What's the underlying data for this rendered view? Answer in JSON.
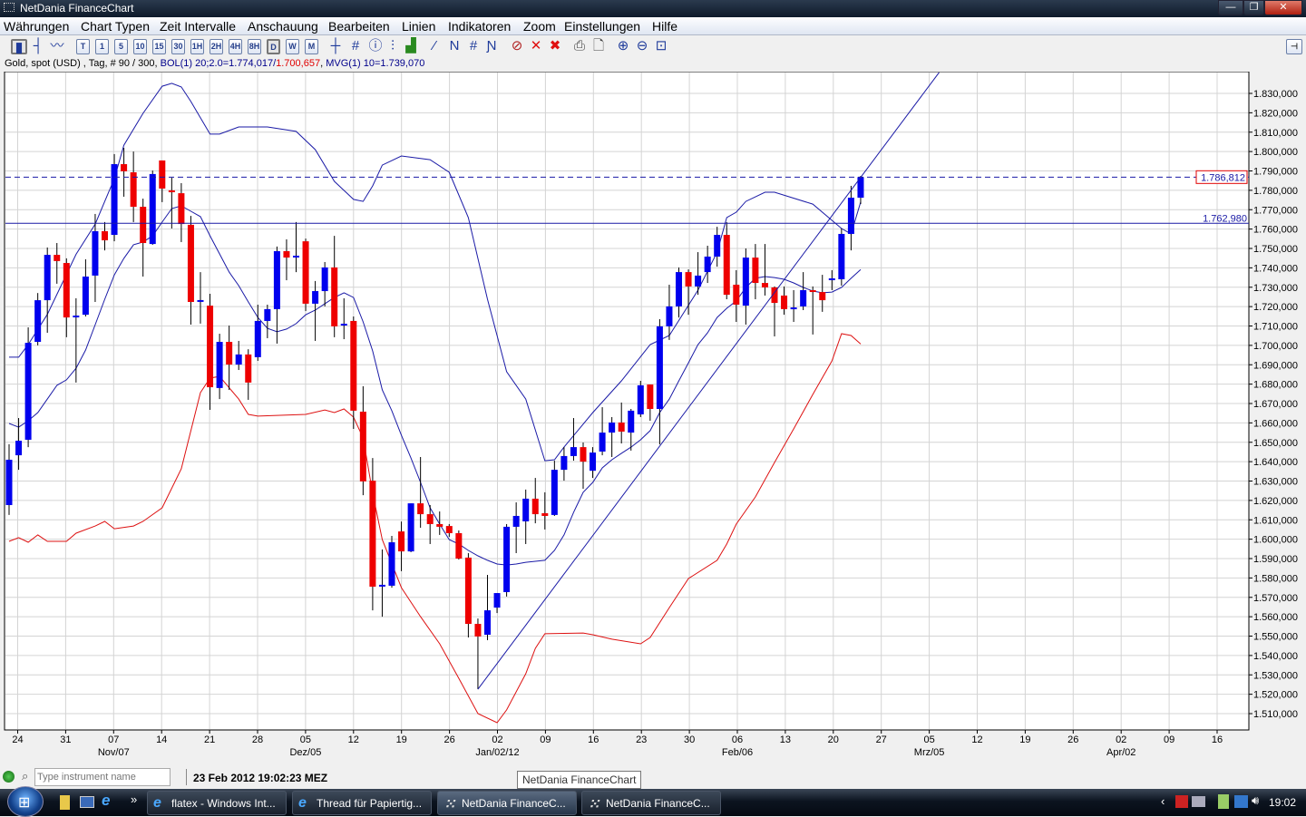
{
  "window": {
    "title": "NetDania FinanceChart",
    "minimize": "—",
    "restore": "❐",
    "close": "✕"
  },
  "menu": [
    "Währungen",
    "Chart Typen",
    "Zeit Intervalle",
    "Anschauung",
    "Bearbeiten",
    "Linien",
    "Indikatoren",
    "Zoom",
    "Einstellungen",
    "Hilfe"
  ],
  "toolbar": {
    "chart_types": [
      {
        "icon": "candlestick-chart-icon",
        "glyph": "▮"
      },
      {
        "icon": "bar-chart-icon",
        "glyph": "┤"
      },
      {
        "icon": "line-chart-icon",
        "glyph": "〰"
      }
    ],
    "intervals": [
      "T",
      "1",
      "5",
      "10",
      "15",
      "30",
      "1H",
      "2H",
      "4H",
      "8H",
      "D",
      "W",
      "M"
    ],
    "active_interval": "D",
    "tools": [
      {
        "icon": "crosshair-icon",
        "glyph": "┼"
      },
      {
        "icon": "grid-icon",
        "glyph": "#"
      },
      {
        "icon": "info-icon",
        "glyph": "ⓘ"
      },
      {
        "icon": "price-scale-icon",
        "glyph": "⫶"
      },
      {
        "icon": "volume-bars-icon",
        "glyph": "▟"
      },
      {
        "icon": "trendline-icon",
        "glyph": "⁄"
      },
      {
        "icon": "channel-line-icon",
        "glyph": "Ν"
      },
      {
        "icon": "parallel-lines-icon",
        "glyph": "#"
      },
      {
        "icon": "fibonacci-lines-icon",
        "glyph": "Ɲ"
      },
      {
        "icon": "delete-line-icon",
        "glyph": "⊘"
      },
      {
        "icon": "delete-icon",
        "glyph": "✕"
      },
      {
        "icon": "delete-all-icon",
        "glyph": "✖"
      },
      {
        "icon": "print-icon",
        "glyph": "⎙"
      },
      {
        "icon": "print-preview-icon",
        "glyph": "🗋"
      },
      {
        "icon": "zoom-in-icon",
        "glyph": "⊕"
      },
      {
        "icon": "zoom-out-icon",
        "glyph": "⊖"
      },
      {
        "icon": "zoom-reset-icon",
        "glyph": "⊡"
      }
    ],
    "right_toggle": "⊣"
  },
  "info": {
    "instrument": "Gold, spot (USD) , Tag, # 90 / 300, ",
    "bol": "BOL(1) 20;2.0=1.774,017/",
    "bol_lower": "1.700,657",
    ", ": ", ",
    "mvg": "MVG(1) 10=1.739,070",
    "sep": ", "
  },
  "colors": {
    "up": "#0000ee",
    "down": "#ee0000",
    "upper_band": "#1a1aa6",
    "lower_band": "#dd1111",
    "mvg": "#1a1aa6",
    "grid": "#d4d4d4",
    "line": "#1a1aa6"
  },
  "chart_data": {
    "type": "candlestick",
    "instrument": "Gold, spot (USD)",
    "interval": "Tag",
    "ylim": [
      1505,
      1841
    ],
    "yticks": [
      "1.510,000",
      "1.520,000",
      "1.530,000",
      "1.540,000",
      "1.550,000",
      "1.560,000",
      "1.570,000",
      "1.580,000",
      "1.590,000",
      "1.600,000",
      "1.610,000",
      "1.620,000",
      "1.630,000",
      "1.640,000",
      "1.650,000",
      "1.660,000",
      "1.670,000",
      "1.680,000",
      "1.690,000",
      "1.700,000",
      "1.710,000",
      "1.720,000",
      "1.730,000",
      "1.740,000",
      "1.750,000",
      "1.760,000",
      "1.770,000",
      "1.780,000",
      "1.790,000",
      "1.800,000",
      "1.810,000",
      "1.820,000",
      "1.830,000"
    ],
    "ytick_values": [
      1510,
      1520,
      1530,
      1540,
      1550,
      1560,
      1570,
      1580,
      1590,
      1600,
      1610,
      1620,
      1630,
      1640,
      1650,
      1660,
      1670,
      1680,
      1690,
      1700,
      1710,
      1720,
      1730,
      1740,
      1750,
      1760,
      1770,
      1780,
      1790,
      1800,
      1810,
      1820,
      1830
    ],
    "xticks": [
      "24",
      "31",
      "07",
      "14",
      "21",
      "28",
      "05",
      "12",
      "19",
      "26",
      "02",
      "09",
      "16",
      "23",
      "30",
      "06",
      "13",
      "20",
      "27",
      "05",
      "12",
      "19",
      "26",
      "02",
      "09",
      "16"
    ],
    "month_labels": [
      {
        "tick": 2,
        "label": "Nov/07"
      },
      {
        "tick": 6,
        "label": "Dez/05"
      },
      {
        "tick": 10,
        "label": "Jan/02/12"
      },
      {
        "tick": 15,
        "label": "Feb/06"
      },
      {
        "tick": 19,
        "label": "Mrz/05"
      },
      {
        "tick": 23,
        "label": "Apr/02"
      }
    ],
    "ohlc": [
      [
        1617.6,
        1649,
        1612.5,
        1641
      ],
      [
        1643.3,
        1662.5,
        1635.8,
        1650.8
      ],
      [
        1651.3,
        1709.3,
        1647.5,
        1701.3
      ],
      [
        1701.8,
        1727,
        1700,
        1723.3
      ],
      [
        1723.3,
        1750.5,
        1706.5,
        1746.7
      ],
      [
        1746.7,
        1752.8,
        1731.8,
        1743.5
      ],
      [
        1742.5,
        1744.9,
        1704.2,
        1714.4
      ],
      [
        1714.4,
        1724.3,
        1680.8,
        1714.9
      ],
      [
        1715.8,
        1744.4,
        1714.9,
        1735.5
      ],
      [
        1736,
        1767.8,
        1722.4,
        1758.9
      ],
      [
        1758.9,
        1763.6,
        1749,
        1754.2
      ],
      [
        1757,
        1798.7,
        1753.7,
        1793.5
      ],
      [
        1793.5,
        1801.9,
        1776.7,
        1789.8
      ],
      [
        1789.3,
        1800,
        1763.6,
        1771.5
      ],
      [
        1771.5,
        1775.7,
        1735.5,
        1752.8
      ],
      [
        1752.3,
        1790.2,
        1751.9,
        1788.4
      ],
      [
        1795.4,
        1795.4,
        1773.9,
        1780.9
      ],
      [
        1780,
        1786.5,
        1760.3,
        1779
      ],
      [
        1778.5,
        1783.7,
        1753.3,
        1762.6
      ],
      [
        1762.2,
        1766.8,
        1710.7,
        1722.4
      ],
      [
        1722.4,
        1737.8,
        1711.2,
        1722.9
      ],
      [
        1720.5,
        1726.6,
        1666.7,
        1678.4
      ],
      [
        1678,
        1706,
        1672.3,
        1701.8
      ],
      [
        1701.8,
        1710.2,
        1677,
        1690.1
      ],
      [
        1690.1,
        1702.3,
        1687.3,
        1695.3
      ],
      [
        1695.3,
        1698,
        1671.9,
        1680.8
      ],
      [
        1693.9,
        1721,
        1692,
        1712.6
      ],
      [
        1712.6,
        1721,
        1703.7,
        1718.7
      ],
      [
        1718.7,
        1751,
        1700.9,
        1748.6
      ],
      [
        1748.6,
        1754.7,
        1733.6,
        1745.3
      ],
      [
        1745.8,
        1763.6,
        1737.8,
        1745.8
      ],
      [
        1753.7,
        1755.1,
        1717.7,
        1721.5
      ],
      [
        1721.5,
        1733.2,
        1702.3,
        1728
      ],
      [
        1728,
        1743,
        1720.1,
        1740.2
      ],
      [
        1740.2,
        1756.5,
        1704.2,
        1709.8
      ],
      [
        1710.7,
        1724.3,
        1703.2,
        1710.7
      ],
      [
        1712.6,
        1714.9,
        1656.9,
        1666.3
      ],
      [
        1665.8,
        1678.9,
        1622.7,
        1629.8
      ],
      [
        1630.2,
        1641.9,
        1563.3,
        1575.5
      ],
      [
        1576,
        1594.7,
        1560,
        1576
      ],
      [
        1576,
        1601.7,
        1575,
        1598.4
      ],
      [
        1604,
        1609.1,
        1583.5,
        1593.7
      ],
      [
        1593.7,
        1618.5,
        1593.3,
        1618.5
      ],
      [
        1618.5,
        1642.4,
        1605.9,
        1612.9
      ],
      [
        1612.9,
        1617.6,
        1597.5,
        1607.8
      ],
      [
        1607.8,
        1614.3,
        1602.2,
        1606.4
      ],
      [
        1606.8,
        1607.8,
        1601.2,
        1603.1
      ],
      [
        1603.1,
        1604.5,
        1589.5,
        1590
      ],
      [
        1590.5,
        1592.8,
        1549.3,
        1556.3
      ],
      [
        1556.3,
        1559.1,
        1522.6,
        1549.8
      ],
      [
        1550.7,
        1581.6,
        1547.9,
        1563.3
      ],
      [
        1564.7,
        1572.2,
        1561.9,
        1572.2
      ],
      [
        1572.7,
        1607.8,
        1570.4,
        1606.4
      ],
      [
        1606.4,
        1619,
        1592.8,
        1612
      ],
      [
        1609.2,
        1625.6,
        1597.5,
        1620.9
      ],
      [
        1620.9,
        1631.6,
        1608.2,
        1612.9
      ],
      [
        1613.4,
        1624.2,
        1605,
        1612
      ],
      [
        1612.5,
        1640.5,
        1612,
        1635.8
      ],
      [
        1635.8,
        1647.5,
        1630.2,
        1642.9
      ],
      [
        1642.9,
        1662.5,
        1640.5,
        1647.5
      ],
      [
        1647.5,
        1649.9,
        1626,
        1640
      ],
      [
        1635.3,
        1647.5,
        1631.6,
        1644.7
      ],
      [
        1645.2,
        1668.1,
        1643.3,
        1655
      ],
      [
        1655,
        1663,
        1642.4,
        1660.2
      ],
      [
        1660.2,
        1670.5,
        1649.4,
        1655.5
      ],
      [
        1655,
        1667.2,
        1645.7,
        1666.3
      ],
      [
        1664.4,
        1681.7,
        1663,
        1679.4
      ],
      [
        1679.8,
        1679.8,
        1661.1,
        1667.2
      ],
      [
        1667.2,
        1713.5,
        1648.9,
        1709.8
      ],
      [
        1709.8,
        1731.3,
        1702.8,
        1720.1
      ],
      [
        1720.1,
        1740.2,
        1714.4,
        1737.8
      ],
      [
        1737.8,
        1739.2,
        1715.8,
        1730.4
      ],
      [
        1730.4,
        1748.1,
        1726.1,
        1736
      ],
      [
        1737.8,
        1751.4,
        1732.2,
        1745.8
      ],
      [
        1745.8,
        1761.2,
        1740.6,
        1757
      ],
      [
        1757,
        1763.6,
        1723.8,
        1726.1
      ],
      [
        1731.3,
        1738.8,
        1712.1,
        1721
      ],
      [
        1720.5,
        1750,
        1710.7,
        1745.3
      ],
      [
        1745.3,
        1752.3,
        1723.8,
        1732.2
      ],
      [
        1732.2,
        1752.3,
        1725.7,
        1729.9
      ],
      [
        1729.9,
        1730.4,
        1704.6,
        1721.9
      ],
      [
        1725.7,
        1730.4,
        1715.8,
        1718.7
      ],
      [
        1719.1,
        1728.5,
        1712.1,
        1719.1
      ],
      [
        1720.1,
        1737.8,
        1718.2,
        1728.5
      ],
      [
        1728,
        1730.4,
        1705.6,
        1727.6
      ],
      [
        1727.5,
        1736.4,
        1717.3,
        1723.3
      ],
      [
        1734.1,
        1738.8,
        1728.5,
        1734.1
      ],
      [
        1734.1,
        1760.3,
        1730.8,
        1757.5
      ],
      [
        1757.5,
        1782.3,
        1749,
        1776.2
      ],
      [
        1776.2,
        1787.4,
        1772.9,
        1786.8
      ]
    ],
    "bol_upper": [
      [
        0,
        1693.9
      ],
      [
        1,
        1693.9
      ],
      [
        2,
        1700.4
      ],
      [
        4,
        1716
      ],
      [
        7,
        1747
      ],
      [
        9,
        1762.6
      ],
      [
        10,
        1774.3
      ],
      [
        11,
        1786
      ],
      [
        12,
        1803.3
      ],
      [
        14,
        1819.7
      ],
      [
        16,
        1833.7
      ],
      [
        17,
        1835.2
      ],
      [
        18,
        1833.3
      ],
      [
        19,
        1825.8
      ],
      [
        20,
        1817.4
      ],
      [
        21,
        1809
      ],
      [
        22,
        1809
      ],
      [
        24,
        1812.7
      ],
      [
        27,
        1812.7
      ],
      [
        30,
        1810.4
      ],
      [
        32,
        1801
      ],
      [
        34,
        1784.6
      ],
      [
        36,
        1775.3
      ],
      [
        37,
        1774.3
      ],
      [
        38,
        1782.3
      ],
      [
        39,
        1793
      ],
      [
        41,
        1797.7
      ],
      [
        44,
        1795.8
      ],
      [
        46,
        1789.3
      ],
      [
        48,
        1765.9
      ],
      [
        50,
        1723.8
      ],
      [
        52,
        1686.4
      ],
      [
        54,
        1672.3
      ],
      [
        56,
        1640.5
      ],
      [
        57,
        1641
      ],
      [
        58,
        1647.5
      ],
      [
        61,
        1665.3
      ],
      [
        64,
        1681.7
      ],
      [
        67,
        1700.4
      ],
      [
        69,
        1705.1
      ],
      [
        72,
        1728.5
      ],
      [
        74,
        1748.1
      ],
      [
        75,
        1765.9
      ],
      [
        76,
        1768.7
      ],
      [
        77,
        1774.3
      ],
      [
        79,
        1779
      ],
      [
        80,
        1779
      ],
      [
        84,
        1772.9
      ],
      [
        86,
        1764.5
      ],
      [
        87,
        1760.3
      ],
      [
        88,
        1757.5
      ],
      [
        89,
        1774
      ]
    ],
    "bol_lower": [
      [
        0,
        1598.9
      ],
      [
        1,
        1600.8
      ],
      [
        2,
        1598.4
      ],
      [
        3,
        1602.2
      ],
      [
        4,
        1598.9
      ],
      [
        6,
        1598.9
      ],
      [
        7,
        1603.1
      ],
      [
        9,
        1606.8
      ],
      [
        10,
        1609.2
      ],
      [
        11,
        1605.4
      ],
      [
        13,
        1606.8
      ],
      [
        14,
        1609.2
      ],
      [
        16,
        1616.2
      ],
      [
        18,
        1636.3
      ],
      [
        20,
        1675.6
      ],
      [
        21,
        1683.1
      ],
      [
        22,
        1684
      ],
      [
        24,
        1672.3
      ],
      [
        25,
        1664.4
      ],
      [
        26,
        1663.5
      ],
      [
        31,
        1664.4
      ],
      [
        33,
        1666.7
      ],
      [
        34,
        1665.3
      ],
      [
        35,
        1667.2
      ],
      [
        36,
        1663
      ],
      [
        37,
        1652.2
      ],
      [
        38,
        1623.7
      ],
      [
        39,
        1599.8
      ],
      [
        41,
        1575
      ],
      [
        43,
        1560
      ],
      [
        45,
        1546
      ],
      [
        47,
        1528.2
      ],
      [
        49,
        1510
      ],
      [
        51,
        1505.3
      ],
      [
        52,
        1511.9
      ],
      [
        54,
        1530.6
      ],
      [
        55,
        1543.7
      ],
      [
        56,
        1551.2
      ],
      [
        60,
        1551.6
      ],
      [
        61,
        1550.7
      ],
      [
        63,
        1548.4
      ],
      [
        66,
        1546
      ],
      [
        67,
        1549.3
      ],
      [
        69,
        1564.7
      ],
      [
        71,
        1579.7
      ],
      [
        74,
        1589.1
      ],
      [
        75,
        1597.5
      ],
      [
        76,
        1607.8
      ],
      [
        78,
        1621.8
      ],
      [
        80,
        1639.6
      ],
      [
        82,
        1656.9
      ],
      [
        84,
        1674.7
      ],
      [
        86,
        1692
      ],
      [
        87,
        1706
      ],
      [
        88,
        1705.1
      ],
      [
        89,
        1700.7
      ]
    ],
    "mvg10": [
      1659.7,
      1657.8,
      1661.1,
      1665.3,
      1672.3,
      1679.4,
      1682.2,
      1688.2,
      1697.6,
      1710.7,
      1723.8,
      1736.4,
      1744.9,
      1751.9,
      1753.3,
      1756.5,
      1763.6,
      1770.6,
      1772,
      1769.2,
      1766.4,
      1756.5,
      1747.2,
      1737.8,
      1730.8,
      1722.4,
      1714.4,
      1708.8,
      1707,
      1708.4,
      1711.2,
      1715.8,
      1718.2,
      1721.5,
      1724.7,
      1727.1,
      1724.7,
      1712.1,
      1697.1,
      1677,
      1666.3,
      1653.6,
      1641.9,
      1629.3,
      1616.2,
      1607.8,
      1599.8,
      1597.5,
      1594.2,
      1591.4,
      1589.1,
      1587.2,
      1586.7,
      1587.2,
      1588.1,
      1588.6,
      1589.1,
      1594.2,
      1602.2,
      1613.9,
      1624.2,
      1629.3,
      1636.8,
      1641,
      1644.3,
      1647.5,
      1651.3,
      1656,
      1665.3,
      1672.3,
      1681.7,
      1691,
      1700.4,
      1706.5,
      1714.4,
      1719.1,
      1722.9,
      1729.9,
      1734.6,
      1735.5,
      1735,
      1734.1,
      1732.2,
      1729.9,
      1728,
      1727.1,
      1727.5,
      1729.9,
      1734.6,
      1739.1
    ],
    "trendline": [
      [
        49,
        1522.6
      ],
      [
        97.2,
        1840.8
      ]
    ],
    "hlines": [
      {
        "value": 1762.98,
        "label": "1.762,980",
        "style": "solid"
      },
      {
        "value": 1786.812,
        "label": "1.786,812",
        "style": "dashed",
        "boxed": true
      }
    ],
    "grid": true
  },
  "status": {
    "search_placeholder": "Type instrument name",
    "datetime": "23 Feb 2012 19:02:23 MEZ",
    "tooltip": "NetDania FinanceChart"
  },
  "taskbar": {
    "tasks": [
      {
        "label": "flatex - Windows Int...",
        "icon": "ie-icon"
      },
      {
        "label": "Thread für Papiertig...",
        "icon": "ie-icon"
      },
      {
        "label": "NetDania FinanceC...",
        "icon": "netdania-icon",
        "active": true
      },
      {
        "label": "NetDania FinanceC...",
        "icon": "netdania-icon"
      }
    ],
    "clock": "19:02",
    "more": "»"
  }
}
